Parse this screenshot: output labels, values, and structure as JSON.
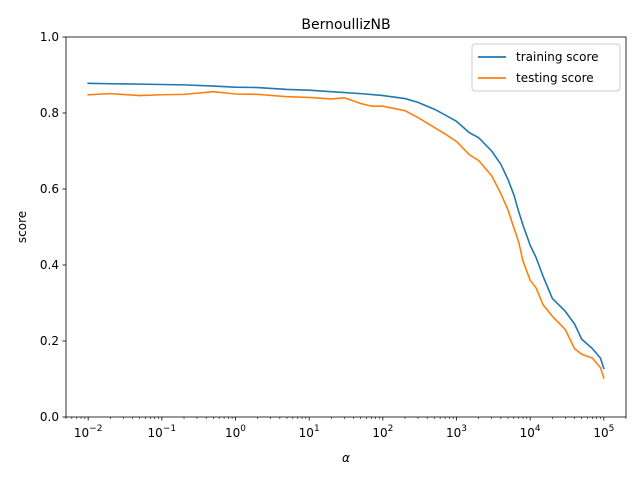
{
  "chart_data": {
    "type": "line",
    "title": "BernoullizNB",
    "xlabel": "α",
    "ylabel": "score",
    "xscale": "log",
    "xlim": [
      0.005,
      200000
    ],
    "ylim": [
      0.0,
      1.0
    ],
    "grid": false,
    "legend_position": "top-right",
    "x_ticks": [
      {
        "value": 0.01,
        "base": "10",
        "exp": "−2"
      },
      {
        "value": 0.1,
        "base": "10",
        "exp": "−1"
      },
      {
        "value": 1,
        "base": "10",
        "exp": "0"
      },
      {
        "value": 10,
        "base": "10",
        "exp": "1"
      },
      {
        "value": 100,
        "base": "10",
        "exp": "2"
      },
      {
        "value": 1000,
        "base": "10",
        "exp": "3"
      },
      {
        "value": 10000,
        "base": "10",
        "exp": "4"
      },
      {
        "value": 100000,
        "base": "10",
        "exp": "5"
      }
    ],
    "y_ticks": [
      {
        "value": 0.0,
        "label": "0.0"
      },
      {
        "value": 0.2,
        "label": "0.2"
      },
      {
        "value": 0.4,
        "label": "0.4"
      },
      {
        "value": 0.6,
        "label": "0.6"
      },
      {
        "value": 0.8,
        "label": "0.8"
      },
      {
        "value": 1.0,
        "label": "1.0"
      }
    ],
    "series": [
      {
        "name": "training score",
        "color": "#1f77b4",
        "x": [
          0.01,
          0.02,
          0.05,
          0.1,
          0.2,
          0.5,
          1,
          2,
          5,
          10,
          20,
          50,
          100,
          200,
          300,
          500,
          700,
          1000,
          1500,
          2000,
          3000,
          4000,
          5000,
          6000,
          7000,
          8000,
          10000,
          12000,
          15000,
          20000,
          30000,
          40000,
          50000,
          70000,
          90000,
          100000
        ],
        "values": [
          0.878,
          0.877,
          0.876,
          0.875,
          0.874,
          0.871,
          0.868,
          0.867,
          0.862,
          0.86,
          0.856,
          0.851,
          0.846,
          0.838,
          0.828,
          0.81,
          0.795,
          0.778,
          0.748,
          0.735,
          0.7,
          0.665,
          0.625,
          0.585,
          0.54,
          0.505,
          0.452,
          0.42,
          0.37,
          0.312,
          0.278,
          0.245,
          0.205,
          0.18,
          0.155,
          0.128
        ]
      },
      {
        "name": "testing score",
        "color": "#ff7f0e",
        "x": [
          0.01,
          0.02,
          0.05,
          0.1,
          0.2,
          0.5,
          1,
          2,
          5,
          10,
          20,
          30,
          50,
          70,
          100,
          200,
          300,
          500,
          700,
          1000,
          1500,
          2000,
          3000,
          4000,
          5000,
          6000,
          7000,
          8000,
          10000,
          12000,
          15000,
          20000,
          30000,
          40000,
          50000,
          70000,
          90000,
          100000
        ],
        "values": [
          0.848,
          0.851,
          0.846,
          0.848,
          0.849,
          0.856,
          0.85,
          0.849,
          0.843,
          0.841,
          0.837,
          0.84,
          0.825,
          0.818,
          0.818,
          0.806,
          0.788,
          0.762,
          0.745,
          0.725,
          0.69,
          0.675,
          0.635,
          0.588,
          0.545,
          0.498,
          0.46,
          0.41,
          0.36,
          0.34,
          0.295,
          0.265,
          0.23,
          0.18,
          0.165,
          0.155,
          0.13,
          0.103
        ]
      }
    ]
  }
}
